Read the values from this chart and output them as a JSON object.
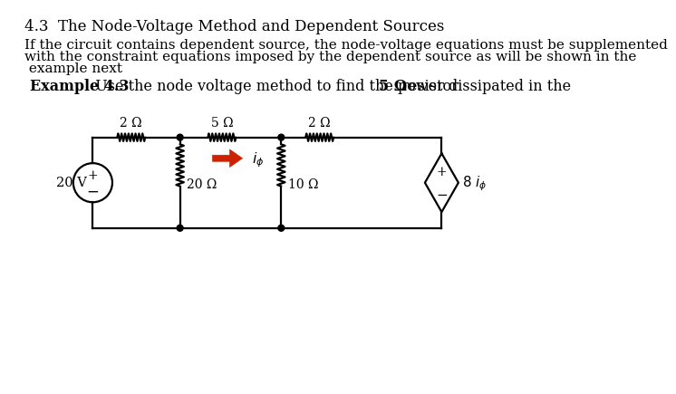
{
  "title": "4.3  The Node-Voltage Method and Dependent Sources",
  "body_line1": "If the circuit contains dependent source, the node-voltage equations must be supplemented",
  "body_line2": "with the constraint equations imposed by the dependent source as will be shown in the",
  "body_line3": " example next",
  "example_bold": "Example 4.3",
  "example_rest": "  Use the node voltage method to find the power dissipated in the ",
  "example_omega": "5 Ω",
  "example_end": " resistor",
  "bg_color": "#ffffff",
  "line_color": "#000000",
  "arrow_color": "#cc2200",
  "title_fontsize": 12,
  "body_fontsize": 11,
  "example_fontsize": 11.5
}
